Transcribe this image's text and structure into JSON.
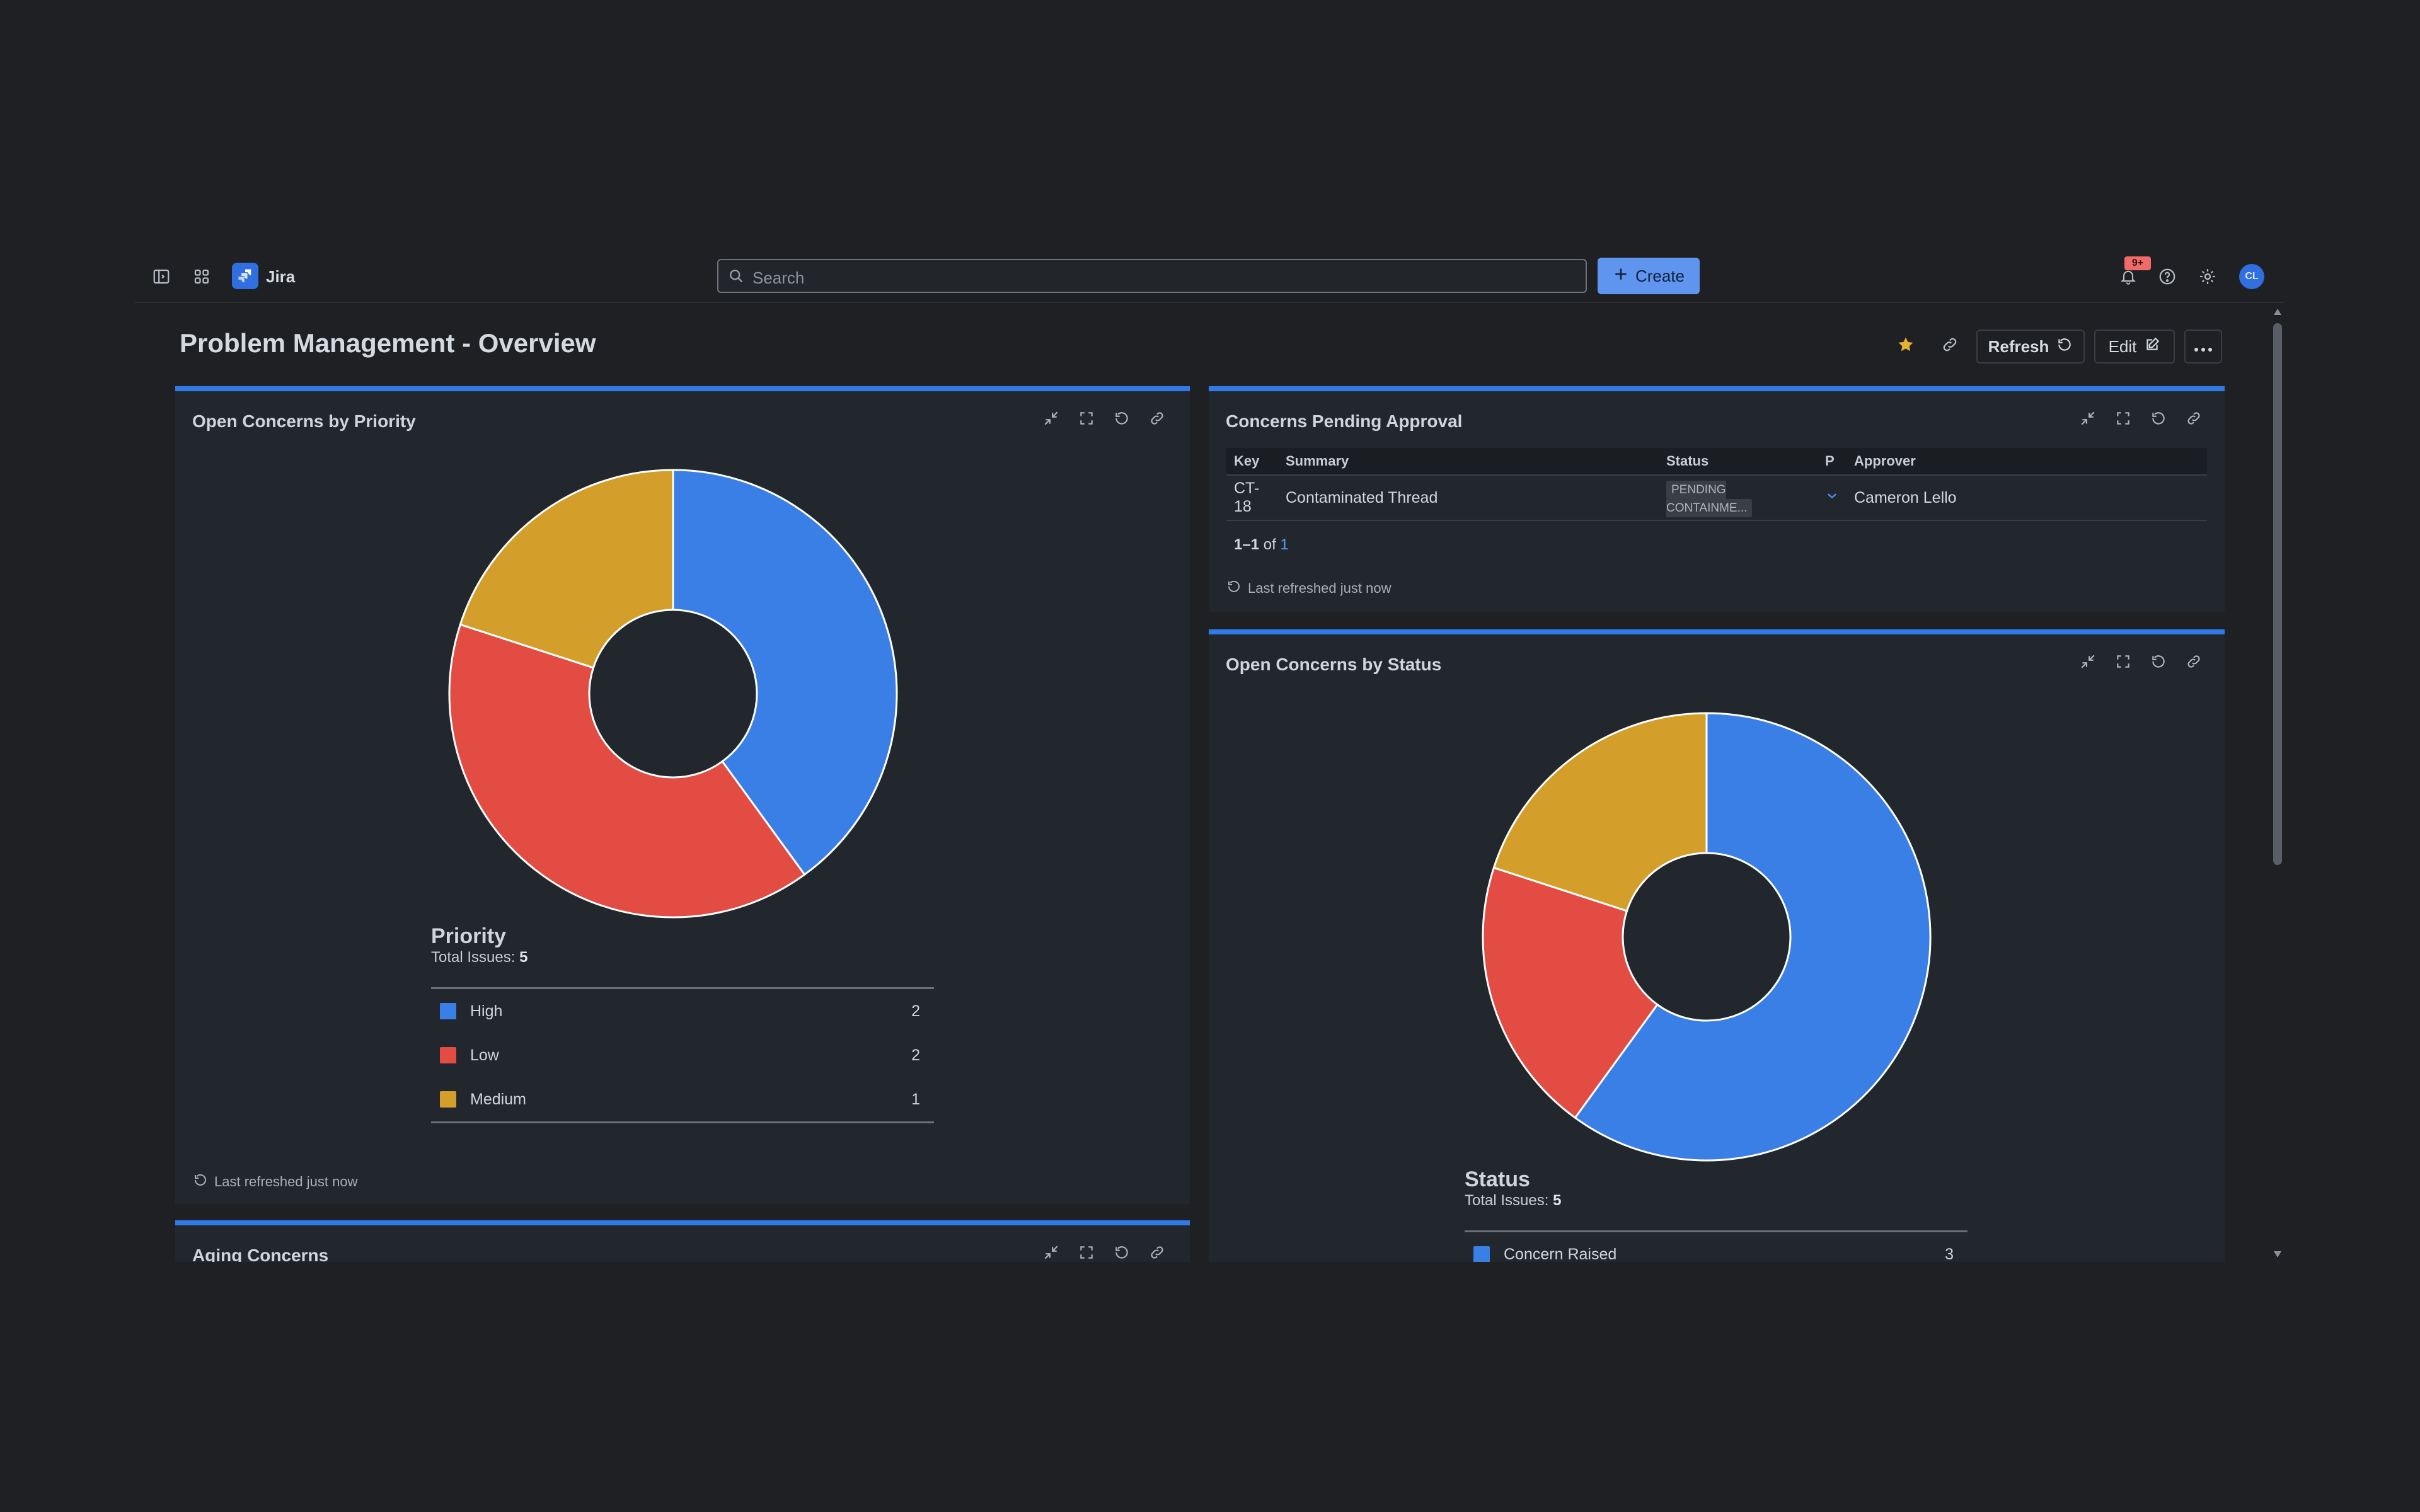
{
  "app": {
    "name": "Jira",
    "search_placeholder": "Search",
    "create_label": "Create",
    "notif_badge": "9+",
    "avatar_initials": "CL"
  },
  "page": {
    "title": "Problem Management - Overview",
    "refresh_label": "Refresh",
    "edit_label": "Edit"
  },
  "colors": {
    "high": "#3a7fe6",
    "low": "#e24c42",
    "medium": "#d39f2a",
    "accent": "#2f7ae6"
  },
  "priority_gadget": {
    "title": "Open Concerns by Priority",
    "legend_title": "Priority",
    "total_label": "Total Issues:",
    "total": "5",
    "items": [
      {
        "label": "High",
        "count": "2"
      },
      {
        "label": "Low",
        "count": "2"
      },
      {
        "label": "Medium",
        "count": "1"
      }
    ],
    "refreshed": "Last refreshed just now"
  },
  "pending_gadget": {
    "title": "Concerns Pending Approval",
    "columns": [
      "Key",
      "Summary",
      "Status",
      "P",
      "Approver"
    ],
    "rows": [
      {
        "key": "CT-18",
        "summary": "Contaminated Thread",
        "status": "PENDING CONTAINME...",
        "approver": "Cameron Lello"
      }
    ],
    "pagination_range": "1–1",
    "pagination_of": "of",
    "pagination_total": "1",
    "refreshed": "Last refreshed just now"
  },
  "status_gadget": {
    "title": "Open Concerns by Status",
    "legend_title": "Status",
    "total_label": "Total Issues:",
    "total": "5",
    "items": [
      {
        "label": "Concern Raised",
        "count": "3"
      }
    ]
  },
  "aging_gadget": {
    "title": "Aging Concerns"
  },
  "chart_data": [
    {
      "type": "pie",
      "title": "Priority",
      "categories": [
        "High",
        "Low",
        "Medium"
      ],
      "values": [
        2,
        2,
        1
      ],
      "colors": [
        "#3a7fe6",
        "#e24c42",
        "#d39f2a"
      ]
    },
    {
      "type": "pie",
      "title": "Status",
      "categories": [
        "Concern Raised",
        "",
        ""
      ],
      "values": [
        3,
        1,
        1
      ],
      "colors": [
        "#3a7fe6",
        "#e24c42",
        "#d39f2a"
      ]
    }
  ]
}
